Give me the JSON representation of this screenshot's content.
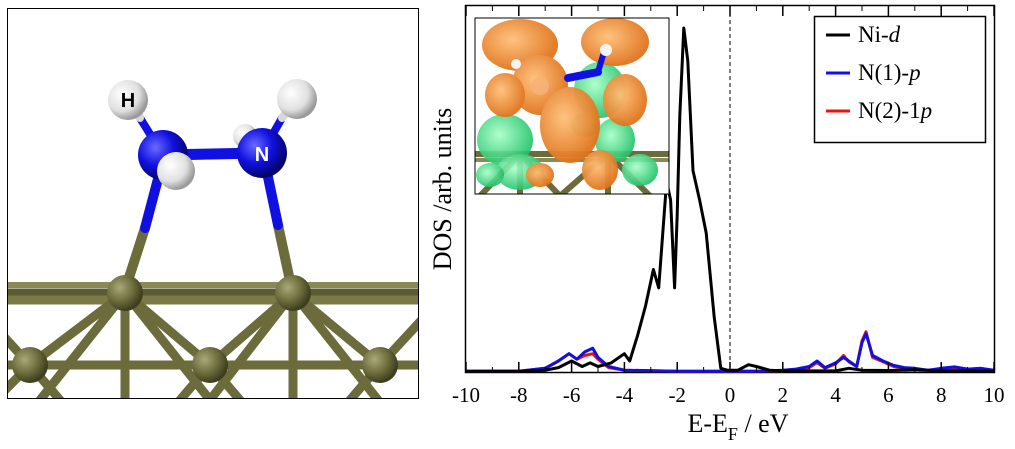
{
  "structure_panel": {
    "labels": {
      "hydrogen": "H",
      "nitrogen": "N"
    },
    "colors": {
      "ni": "#6b6b3c",
      "n": "#1010e0",
      "h": "#e4e4e4"
    }
  },
  "chart_data": {
    "type": "line",
    "xlabel": "E-E",
    "xlabel_subscript": "F",
    "xlabel_unit": " / eV",
    "ylabel": "DOS /arb. units",
    "xlim": [
      -10,
      10
    ],
    "ylim": [
      0,
      10
    ],
    "x_ticks": [
      -10,
      -8,
      -6,
      -4,
      -2,
      0,
      2,
      4,
      6,
      8,
      10
    ],
    "x_tick_labels": [
      "-10",
      "-8",
      "-6",
      "-4",
      "-2",
      "0",
      "2",
      "4",
      "6",
      "8",
      "10"
    ],
    "fermi_level": 0,
    "legend_position": "top-right",
    "series": [
      {
        "name": "Ni-",
        "name_italic": "d",
        "color": "#000000",
        "points": [
          [
            -10,
            0.02
          ],
          [
            -8,
            0.02
          ],
          [
            -7,
            0.05
          ],
          [
            -6.5,
            0.12
          ],
          [
            -6,
            0.3
          ],
          [
            -5.6,
            0.15
          ],
          [
            -5.3,
            0.25
          ],
          [
            -5,
            0.15
          ],
          [
            -4.5,
            0.25
          ],
          [
            -4,
            0.5
          ],
          [
            -3.8,
            0.3
          ],
          [
            -3.5,
            1.0
          ],
          [
            -3.2,
            1.8
          ],
          [
            -2.9,
            2.8
          ],
          [
            -2.7,
            2.3
          ],
          [
            -2.4,
            5.2
          ],
          [
            -2.25,
            4.7
          ],
          [
            -2.1,
            2.3
          ],
          [
            -2.0,
            4.3
          ],
          [
            -1.9,
            7.0
          ],
          [
            -1.75,
            9.4
          ],
          [
            -1.6,
            8.5
          ],
          [
            -1.4,
            5.5
          ],
          [
            -1.15,
            4.7
          ],
          [
            -0.9,
            3.8
          ],
          [
            -0.6,
            1.5
          ],
          [
            -0.35,
            0.1
          ],
          [
            -0.1,
            0.05
          ],
          [
            0.3,
            0.05
          ],
          [
            0.7,
            0.2
          ],
          [
            1.0,
            0.15
          ],
          [
            1.5,
            0.05
          ],
          [
            2.0,
            0.03
          ],
          [
            3,
            0.03
          ],
          [
            4,
            0.03
          ],
          [
            4.5,
            0.1
          ],
          [
            5.0,
            0.05
          ],
          [
            6,
            0.04
          ],
          [
            7,
            0.06
          ],
          [
            8,
            0.03
          ],
          [
            9,
            0.03
          ],
          [
            10,
            0.02
          ]
        ]
      },
      {
        "name": "N(1)-",
        "name_italic": "p",
        "color": "#1010e0",
        "points": [
          [
            -10,
            0.02
          ],
          [
            -8,
            0.02
          ],
          [
            -7,
            0.1
          ],
          [
            -6.5,
            0.3
          ],
          [
            -6.1,
            0.5
          ],
          [
            -5.8,
            0.35
          ],
          [
            -5.5,
            0.55
          ],
          [
            -5.2,
            0.65
          ],
          [
            -5,
            0.4
          ],
          [
            -4.6,
            0.15
          ],
          [
            -4,
            0.05
          ],
          [
            -2,
            0.02
          ],
          [
            0,
            0.02
          ],
          [
            1,
            0.02
          ],
          [
            2,
            0.05
          ],
          [
            2.5,
            0.08
          ],
          [
            3,
            0.15
          ],
          [
            3.3,
            0.3
          ],
          [
            3.6,
            0.12
          ],
          [
            4.0,
            0.25
          ],
          [
            4.3,
            0.4
          ],
          [
            4.5,
            0.3
          ],
          [
            4.8,
            0.15
          ],
          [
            5.0,
            0.8
          ],
          [
            5.15,
            1.05
          ],
          [
            5.4,
            0.45
          ],
          [
            5.8,
            0.3
          ],
          [
            6.2,
            0.18
          ],
          [
            6.6,
            0.12
          ],
          [
            7,
            0.1
          ],
          [
            7.5,
            0.05
          ],
          [
            8,
            0.1
          ],
          [
            8.5,
            0.14
          ],
          [
            9,
            0.08
          ],
          [
            9.5,
            0.1
          ],
          [
            10,
            0.05
          ]
        ]
      },
      {
        "name": "N(2)-1",
        "name_italic": "p",
        "color": "#ee1111",
        "points": [
          [
            -10,
            0.02
          ],
          [
            -8,
            0.02
          ],
          [
            -7,
            0.1
          ],
          [
            -6.5,
            0.3
          ],
          [
            -6.1,
            0.5
          ],
          [
            -5.8,
            0.35
          ],
          [
            -5.5,
            0.45
          ],
          [
            -5.2,
            0.5
          ],
          [
            -5,
            0.35
          ],
          [
            -4.6,
            0.12
          ],
          [
            -4,
            0.05
          ],
          [
            -2,
            0.02
          ],
          [
            0,
            0.02
          ],
          [
            1,
            0.02
          ],
          [
            2,
            0.04
          ],
          [
            2.5,
            0.07
          ],
          [
            3,
            0.12
          ],
          [
            3.3,
            0.26
          ],
          [
            3.6,
            0.1
          ],
          [
            4.0,
            0.22
          ],
          [
            4.3,
            0.45
          ],
          [
            4.5,
            0.28
          ],
          [
            4.8,
            0.15
          ],
          [
            5.0,
            0.85
          ],
          [
            5.15,
            1.1
          ],
          [
            5.4,
            0.4
          ],
          [
            5.8,
            0.28
          ],
          [
            6.2,
            0.15
          ],
          [
            6.6,
            0.1
          ],
          [
            7,
            0.08
          ],
          [
            7.5,
            0.05
          ],
          [
            8,
            0.08
          ],
          [
            8.5,
            0.1
          ],
          [
            9,
            0.06
          ],
          [
            9.5,
            0.08
          ],
          [
            10,
            0.05
          ]
        ]
      }
    ]
  }
}
